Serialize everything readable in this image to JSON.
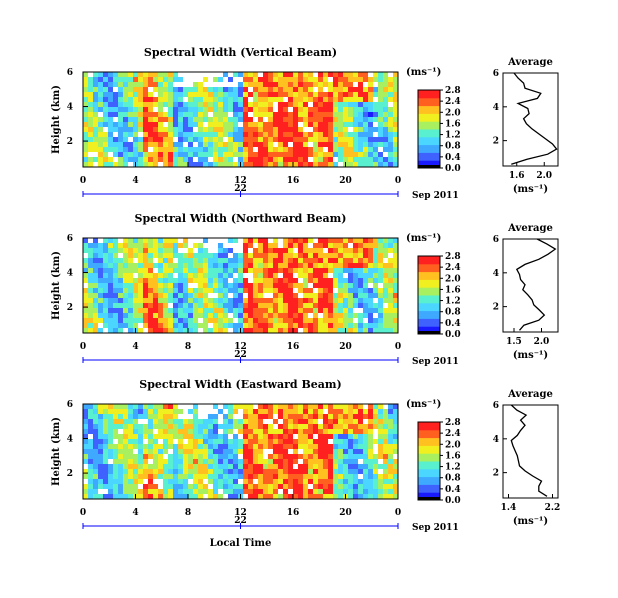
{
  "chart_data": [
    {
      "type": "heatmap",
      "title": "Spectral Width (Vertical Beam)",
      "ylabel": "Height (km)",
      "xlabel": "",
      "x_ticks": [
        "0",
        "4",
        "8",
        "12",
        "16",
        "20",
        "0"
      ],
      "xlim": [
        0,
        24
      ],
      "y_ticks": [
        "6",
        "4",
        "2"
      ],
      "ylim": [
        0.5,
        6
      ],
      "date_day": "22",
      "date_label": "Sep 2011",
      "colorbar": {
        "unit": "(ms⁻¹)",
        "ticks": [
          "0.0",
          "0.4",
          "0.8",
          "1.2",
          "1.6",
          "2.0",
          "2.4",
          "2.8"
        ],
        "range": [
          0,
          2.8
        ]
      },
      "profile": {
        "title": "Average",
        "xlabel": "(ms⁻¹)",
        "x_ticks": [
          "1.6",
          "2.0"
        ],
        "y_ticks": [
          "6",
          "4",
          "2"
        ],
        "xlim": [
          1.4,
          2.2
        ],
        "ylim": [
          0.5,
          6
        ],
        "height": [
          0.6,
          0.9,
          1.2,
          1.5,
          1.8,
          2.1,
          2.4,
          2.7,
          3.0,
          3.3,
          3.6,
          3.9,
          4.2,
          4.5,
          4.8,
          5.1,
          5.4,
          5.7,
          6.0
        ],
        "value": [
          1.52,
          1.75,
          2.05,
          2.18,
          2.12,
          2.02,
          1.92,
          1.82,
          1.74,
          1.7,
          1.78,
          1.76,
          1.62,
          1.9,
          1.95,
          1.72,
          1.7,
          1.62,
          1.56
        ]
      }
    },
    {
      "type": "heatmap",
      "title": "Spectral Width (Northward Beam)",
      "ylabel": "Height (km)",
      "xlabel": "",
      "x_ticks": [
        "0",
        "4",
        "8",
        "12",
        "16",
        "20",
        "0"
      ],
      "xlim": [
        0,
        24
      ],
      "y_ticks": [
        "6",
        "4",
        "2"
      ],
      "ylim": [
        0.5,
        6
      ],
      "date_day": "22",
      "date_label": "Sep 2011",
      "colorbar": {
        "unit": "(ms⁻¹)",
        "ticks": [
          "0.0",
          "0.4",
          "0.8",
          "1.2",
          "1.6",
          "2.0",
          "2.4",
          "2.8"
        ],
        "range": [
          0,
          2.8
        ]
      },
      "profile": {
        "title": "Average",
        "xlabel": "(ms⁻¹)",
        "x_ticks": [
          "1.5",
          "2.0"
        ],
        "y_ticks": [
          "6",
          "4",
          "2"
        ],
        "xlim": [
          1.3,
          2.3
        ],
        "ylim": [
          0.5,
          6
        ],
        "height": [
          0.6,
          0.9,
          1.2,
          1.5,
          1.8,
          2.1,
          2.4,
          2.7,
          3.0,
          3.3,
          3.6,
          3.9,
          4.2,
          4.5,
          4.8,
          5.1,
          5.4,
          5.7,
          6.0
        ],
        "value": [
          1.6,
          1.68,
          1.95,
          2.05,
          1.96,
          1.86,
          1.83,
          1.75,
          1.66,
          1.7,
          1.62,
          1.6,
          1.55,
          1.7,
          1.95,
          2.12,
          2.25,
          2.1,
          1.92
        ]
      }
    },
    {
      "type": "heatmap",
      "title": "Spectral Width (Eastward Beam)",
      "ylabel": "Height (km)",
      "xlabel": "Local Time",
      "x_ticks": [
        "0",
        "4",
        "8",
        "12",
        "16",
        "20",
        "0"
      ],
      "xlim": [
        0,
        24
      ],
      "y_ticks": [
        "6",
        "4",
        "2"
      ],
      "ylim": [
        0.5,
        6
      ],
      "date_day": "22",
      "date_label": "Sep 2011",
      "colorbar": {
        "unit": "(ms⁻¹)",
        "ticks": [
          "0.0",
          "0.4",
          "0.8",
          "1.2",
          "1.6",
          "2.0",
          "2.4",
          "2.8"
        ],
        "range": [
          0,
          2.8
        ]
      },
      "profile": {
        "title": "Average",
        "xlabel": "(ms⁻¹)",
        "x_ticks": [
          "1.4",
          "2.2"
        ],
        "y_ticks": [
          "6",
          "4",
          "2"
        ],
        "xlim": [
          1.3,
          2.3
        ],
        "ylim": [
          0.5,
          6
        ],
        "height": [
          0.6,
          0.9,
          1.2,
          1.5,
          1.8,
          2.1,
          2.4,
          2.7,
          3.0,
          3.3,
          3.6,
          3.9,
          4.2,
          4.5,
          4.8,
          5.1,
          5.4,
          5.7,
          6.0
        ],
        "value": [
          2.1,
          1.95,
          1.95,
          2.0,
          1.84,
          1.7,
          1.6,
          1.58,
          1.56,
          1.52,
          1.48,
          1.45,
          1.56,
          1.62,
          1.7,
          1.62,
          1.72,
          1.55,
          1.45
        ]
      }
    }
  ],
  "colors": {
    "colormap": [
      "#1a1aff",
      "#3f62ff",
      "#3fa8ff",
      "#4ad6ff",
      "#59f0d0",
      "#a8f060",
      "#f0f020",
      "#ffc020",
      "#ff6020",
      "#ff2020"
    ],
    "line": "#000000",
    "date_axis": "#0000ff"
  }
}
